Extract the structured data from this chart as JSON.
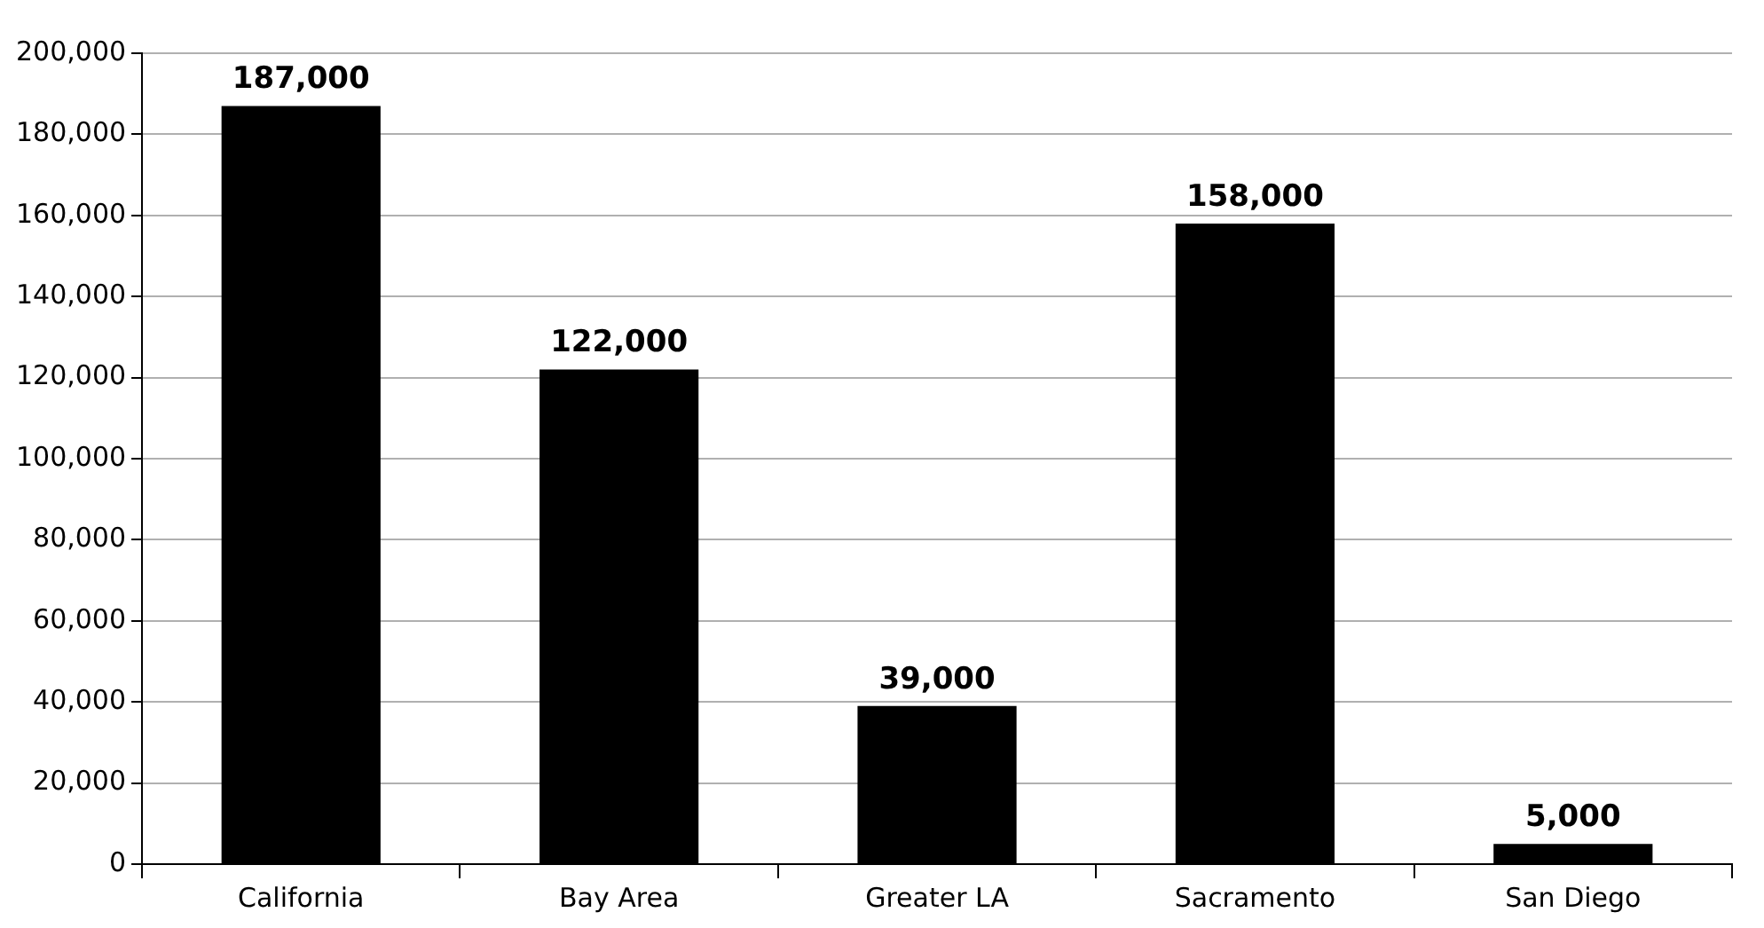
{
  "chart_data": {
    "type": "bar",
    "categories": [
      "California",
      "Bay Area",
      "Greater LA",
      "Sacramento",
      "San Diego"
    ],
    "values": [
      187000,
      122000,
      39000,
      158000,
      5000
    ],
    "value_labels": [
      "187,000",
      "122,000",
      "39,000",
      "158,000",
      "5,000"
    ],
    "color": "#000000",
    "ylim": [
      0,
      200000
    ],
    "yticks": [
      0,
      {
        "value": 20000,
        "label": "20,000"
      },
      {
        "value": 40000,
        "label": "40,000"
      },
      {
        "value": 60000,
        "label": "60,000"
      },
      {
        "value": 80000,
        "label": "80,000"
      },
      {
        "value": 100000,
        "label": "100,000"
      },
      {
        "value": 120000,
        "label": "120,000"
      },
      {
        "value": 140000,
        "label": "140,000"
      },
      {
        "value": 160000,
        "label": "160,000"
      },
      {
        "value": 180000,
        "label": "180,000"
      },
      {
        "value": 200000,
        "label": "200,000"
      }
    ],
    "grid": "y"
  }
}
